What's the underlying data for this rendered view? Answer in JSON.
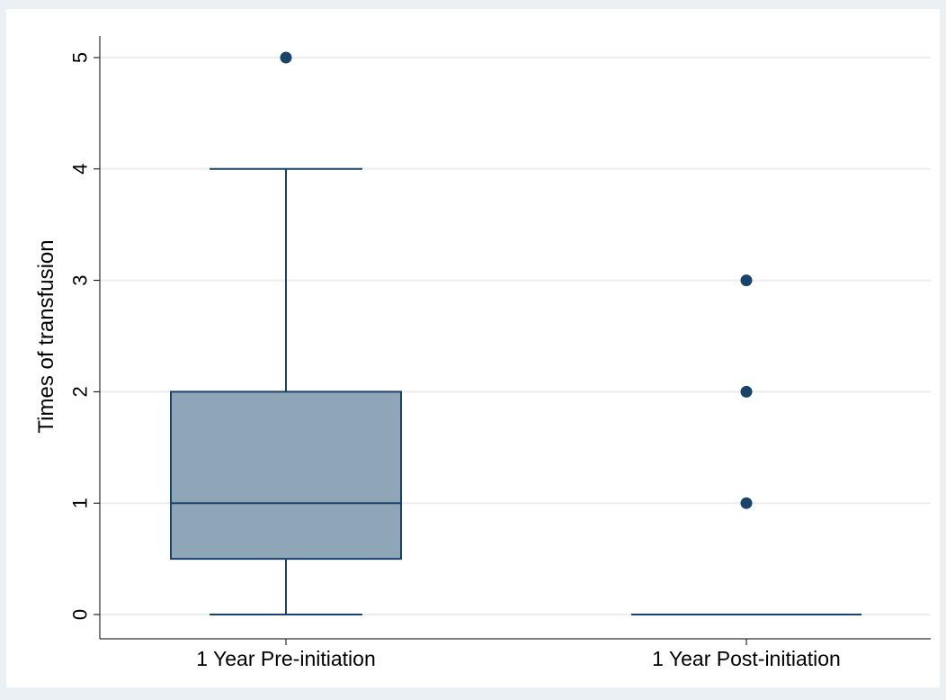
{
  "chart_data": {
    "type": "box",
    "ylabel": "Times of transfusion",
    "xlabel": "",
    "ylim": [
      0,
      5
    ],
    "yticks": [
      "0",
      "1",
      "2",
      "3",
      "4",
      "5"
    ],
    "grid": true,
    "categories": [
      "1 Year Pre-initiation",
      "1 Year Post-initiation"
    ],
    "boxes": [
      {
        "category": "1 Year Pre-initiation",
        "whisker_low": 0,
        "q1": 0.5,
        "median": 1,
        "q3": 2,
        "whisker_high": 4,
        "outliers": [
          5
        ]
      },
      {
        "category": "1 Year Post-initiation",
        "whisker_low": 0,
        "q1": 0,
        "median": 0,
        "q3": 0,
        "whisker_high": 0,
        "outliers": [
          1,
          2,
          3
        ]
      }
    ],
    "colors": {
      "box_fill": "#8fa5b8",
      "box_line": "#1b4369",
      "outlier": "#1b4369",
      "grid": "#e8eef1",
      "plot_bg": "#ffffff",
      "outer_bg": "#eaf0f3"
    }
  }
}
